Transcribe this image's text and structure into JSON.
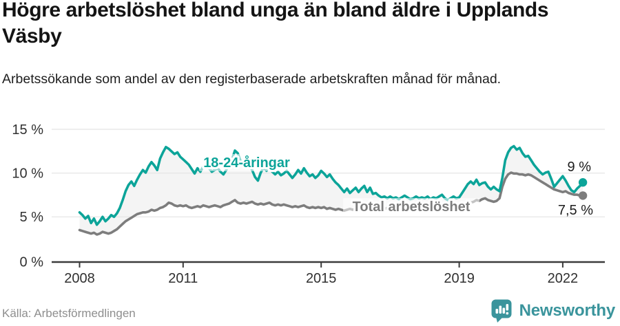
{
  "header": {
    "title": "Högre arbetslöshet bland unga än bland äldre i Upplands Väsby",
    "subtitle": "Arbetssökande som andel av den registerbaserade arbetskraften månad för månad."
  },
  "chart": {
    "y_axis_labels": [
      "15 %",
      "10 %",
      "5 %",
      "0 %"
    ],
    "x_axis_labels": [
      "2008",
      "2011",
      "2015",
      "2019",
      "2022"
    ],
    "series_label_youth": "18-24-åringar",
    "series_label_total": "Total arbetslöshet",
    "end_label_youth": "9 %",
    "end_label_total": "7,5 %"
  },
  "chart_data": {
    "type": "line",
    "title": "Högre arbetslöshet bland unga än bland äldre i Upplands Väsby",
    "ylabel": "",
    "xlabel": "",
    "y_unit": "%",
    "ylim": [
      0,
      15
    ],
    "y_ticks": [
      0,
      5,
      10,
      15
    ],
    "x_ticks": [
      2008,
      2011,
      2015,
      2019,
      2022
    ],
    "x_start": "2008-01",
    "x_end": "2022-08",
    "frequency": "monthly",
    "grid": "horizontal",
    "legend_position": "inline-labels",
    "series": [
      {
        "name": "18-24-åringar",
        "color": "#0ca499",
        "end_value": 9.0,
        "end_value_label": "9 %",
        "values": [
          5.6,
          5.3,
          4.9,
          5.2,
          4.4,
          4.9,
          4.2,
          4.6,
          5.1,
          4.6,
          4.9,
          5.3,
          5.1,
          5.5,
          6.1,
          7.0,
          8.0,
          8.7,
          9.1,
          8.6,
          9.3,
          9.9,
          10.4,
          10.1,
          10.8,
          11.3,
          10.9,
          10.4,
          11.7,
          12.4,
          13.0,
          12.8,
          12.5,
          12.2,
          12.4,
          11.9,
          11.6,
          11.3,
          11.0,
          10.5,
          10.0,
          10.6,
          10.2,
          10.8,
          11.1,
          10.6,
          10.2,
          10.4,
          10.6,
          10.2,
          9.9,
          10.4,
          11.0,
          11.6,
          12.6,
          12.3,
          11.4,
          11.0,
          10.7,
          10.9,
          10.4,
          9.6,
          9.2,
          10.1,
          10.7,
          10.3,
          10.8,
          10.2,
          9.9,
          10.2,
          9.8,
          10.0,
          10.3,
          9.9,
          9.5,
          9.9,
          10.4,
          10.0,
          10.6,
          10.1,
          9.7,
          9.9,
          9.5,
          9.8,
          10.3,
          10.0,
          9.6,
          9.9,
          9.4,
          9.0,
          8.7,
          8.3,
          7.9,
          8.3,
          7.8,
          8.1,
          8.4,
          7.9,
          8.3,
          8.6,
          7.9,
          8.4,
          7.7,
          7.8,
          7.5,
          7.3,
          7.4,
          7.2,
          7.4,
          7.2,
          7.3,
          7.1,
          7.3,
          7.5,
          7.3,
          7.1,
          7.2,
          7.4,
          7.2,
          7.3,
          7.2,
          7.4,
          7.1,
          7.3,
          7.2,
          7.4,
          7.6,
          7.2,
          7.0,
          7.2,
          7.4,
          7.2,
          7.3,
          7.8,
          8.3,
          8.8,
          9.1,
          8.8,
          9.3,
          8.7,
          8.9,
          9.0,
          8.5,
          8.2,
          8.5,
          8.2,
          8.0,
          9.5,
          11.5,
          12.4,
          12.9,
          13.1,
          12.7,
          12.9,
          12.3,
          11.9,
          12.0,
          11.5,
          11.0,
          10.6,
          10.2,
          9.9,
          10.1,
          10.2,
          9.4,
          8.5,
          8.9,
          9.3,
          9.7,
          9.2,
          8.6,
          8.1,
          7.9,
          8.3,
          8.6,
          9.0
        ]
      },
      {
        "name": "Total arbetslöshet",
        "color": "#7d7d7d",
        "end_value": 7.5,
        "end_value_label": "7,5 %",
        "values": [
          3.6,
          3.5,
          3.4,
          3.3,
          3.2,
          3.3,
          3.1,
          3.2,
          3.4,
          3.3,
          3.2,
          3.3,
          3.5,
          3.7,
          4.0,
          4.3,
          4.6,
          4.8,
          5.0,
          5.2,
          5.4,
          5.5,
          5.6,
          5.6,
          5.7,
          5.9,
          5.8,
          5.9,
          6.1,
          6.2,
          6.4,
          6.7,
          6.6,
          6.4,
          6.3,
          6.4,
          6.3,
          6.4,
          6.2,
          6.1,
          6.2,
          6.3,
          6.2,
          6.4,
          6.3,
          6.2,
          6.3,
          6.4,
          6.3,
          6.2,
          6.4,
          6.5,
          6.6,
          6.8,
          7.0,
          6.7,
          6.6,
          6.7,
          6.6,
          6.7,
          6.8,
          6.6,
          6.5,
          6.6,
          6.5,
          6.6,
          6.7,
          6.5,
          6.4,
          6.5,
          6.4,
          6.5,
          6.4,
          6.3,
          6.2,
          6.3,
          6.2,
          6.3,
          6.4,
          6.2,
          6.1,
          6.2,
          6.1,
          6.2,
          6.1,
          6.2,
          6.0,
          6.1,
          6.0,
          5.9,
          6.0,
          5.9,
          5.8,
          5.9,
          6.0,
          5.9,
          6.0,
          5.9,
          6.0,
          6.1,
          6.0,
          6.1,
          6.0,
          5.9,
          6.0,
          6.1,
          6.0,
          6.1,
          6.0,
          6.1,
          6.2,
          6.1,
          6.2,
          6.3,
          6.2,
          6.1,
          6.2,
          6.3,
          6.2,
          6.3,
          6.2,
          6.3,
          6.4,
          6.3,
          6.4,
          6.5,
          6.4,
          6.3,
          6.4,
          6.5,
          6.4,
          6.3,
          6.3,
          6.4,
          6.5,
          6.6,
          6.7,
          6.8,
          7.0,
          6.9,
          7.1,
          7.2,
          7.0,
          6.9,
          6.8,
          6.9,
          7.2,
          8.5,
          9.4,
          9.9,
          10.1,
          10.0,
          10.0,
          9.9,
          9.9,
          9.8,
          9.9,
          9.8,
          9.6,
          9.4,
          9.2,
          9.0,
          8.8,
          8.6,
          8.4,
          8.2,
          8.1,
          8.0,
          7.9,
          8.0,
          7.8,
          7.7,
          7.6,
          7.6,
          7.5,
          7.5
        ]
      }
    ],
    "annotations": {
      "area_between_series": true,
      "area_fill_color": "#f4f4f4"
    }
  },
  "footer": {
    "source": "Källa: Arbetsförmedlingen",
    "brand": "Newsworthy",
    "brand_color": "#3a949c"
  }
}
